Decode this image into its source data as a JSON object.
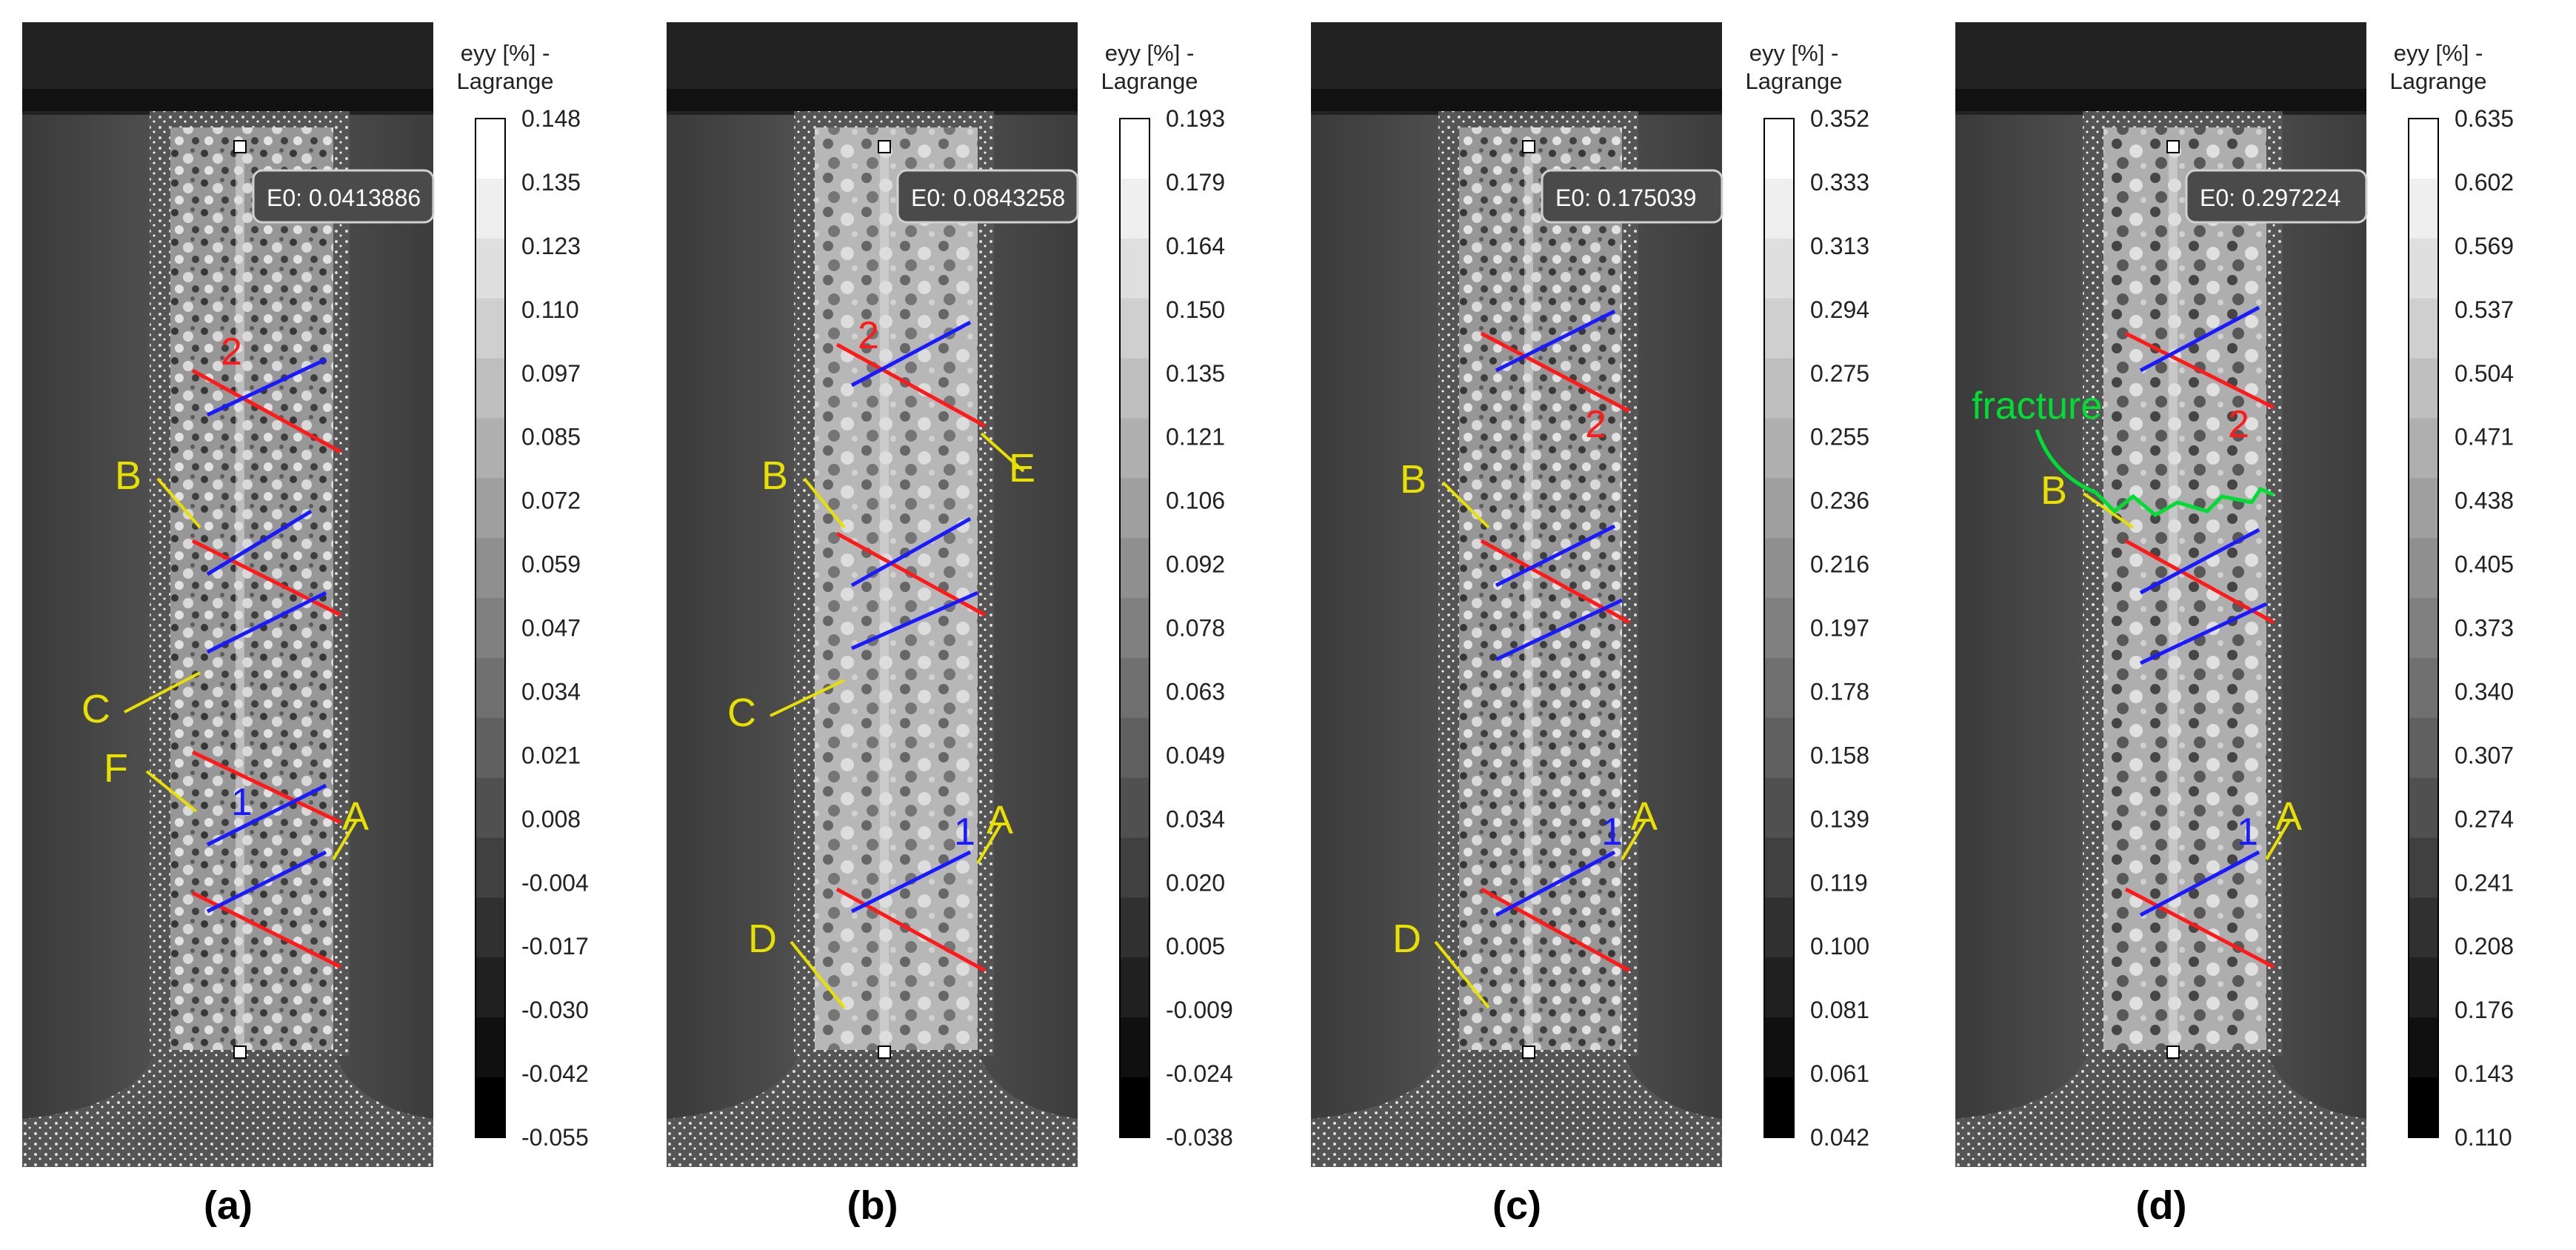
{
  "panels": [
    {
      "label": "(a)",
      "e0": "E0: 0.0413886",
      "colorbar": {
        "title_line1": "eyy [%] -",
        "title_line2": "Lagrange",
        "ticks": [
          "0.148",
          "0.135",
          "0.123",
          "0.110",
          "0.097",
          "0.085",
          "0.072",
          "0.059",
          "0.047",
          "0.034",
          "0.021",
          "0.008",
          "-0.004",
          "-0.017",
          "-0.030",
          "-0.042",
          "-0.055"
        ]
      },
      "annotations": {
        "red": [
          "2"
        ],
        "blue": [
          "1"
        ],
        "yellow": [
          "B",
          "C",
          "F",
          "A"
        ]
      }
    },
    {
      "label": "(b)",
      "e0": "E0: 0.0843258",
      "colorbar": {
        "title_line1": "eyy [%] -",
        "title_line2": "Lagrange",
        "ticks": [
          "0.193",
          "0.179",
          "0.164",
          "0.150",
          "0.135",
          "0.121",
          "0.106",
          "0.092",
          "0.078",
          "0.063",
          "0.049",
          "0.034",
          "0.020",
          "0.005",
          "-0.009",
          "-0.024",
          "-0.038"
        ]
      },
      "annotations": {
        "red": [
          "2"
        ],
        "blue": [
          "1"
        ],
        "yellow": [
          "B",
          "E",
          "C",
          "A",
          "D"
        ]
      }
    },
    {
      "label": "(c)",
      "e0": "E0: 0.175039",
      "colorbar": {
        "title_line1": "eyy [%] -",
        "title_line2": "Lagrange",
        "ticks": [
          "0.352",
          "0.333",
          "0.313",
          "0.294",
          "0.275",
          "0.255",
          "0.236",
          "0.216",
          "0.197",
          "0.178",
          "0.158",
          "0.139",
          "0.119",
          "0.100",
          "0.081",
          "0.061",
          "0.042"
        ]
      },
      "annotations": {
        "red": [
          "2"
        ],
        "blue": [
          "1"
        ],
        "yellow": [
          "B",
          "A",
          "D"
        ]
      }
    },
    {
      "label": "(d)",
      "e0": "E0: 0.297224",
      "colorbar": {
        "title_line1": "eyy [%] -",
        "title_line2": "Lagrange",
        "ticks": [
          "0.635",
          "0.602",
          "0.569",
          "0.537",
          "0.504",
          "0.471",
          "0.438",
          "0.405",
          "0.373",
          "0.340",
          "0.307",
          "0.274",
          "0.241",
          "0.208",
          "0.176",
          "0.143",
          "0.110"
        ]
      },
      "annotations": {
        "red": [
          "2"
        ],
        "blue": [
          "1"
        ],
        "yellow": [
          "B",
          "A"
        ],
        "green": [
          "fracture"
        ]
      }
    }
  ],
  "colors": {
    "red": "#ff1a1a",
    "blue": "#1a1aff",
    "yellow": "#e8e000",
    "green": "#00dd33"
  }
}
